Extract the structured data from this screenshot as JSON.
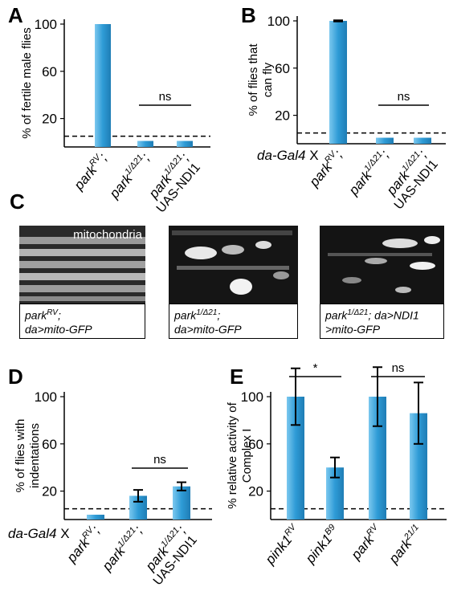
{
  "panel_labels": [
    "A",
    "B",
    "C",
    "D",
    "E"
  ],
  "prefix_label": "da-Gal4 X",
  "bar_color": "#2e9bd6",
  "chart_data": [
    {
      "id": "A",
      "type": "bar",
      "ylabel": "% of fertile male flies",
      "yticks": [
        20,
        60,
        100
      ],
      "ylim": [
        0,
        100
      ],
      "categories": [
        {
          "name": "park",
          "sup": "RV",
          "suffix": ";",
          "line2": ""
        },
        {
          "name": "park",
          "sup": "1/Δ21",
          "suffix": ";",
          "line2": ""
        },
        {
          "name": "park",
          "sup": "1/Δ21",
          "suffix": ";",
          "line2": "UAS-NDI1"
        }
      ],
      "values": [
        100,
        1,
        1
      ],
      "errors": [
        0,
        0,
        0
      ],
      "baseline": 5,
      "significance": [
        {
          "from": 1,
          "to": 2,
          "label": "ns"
        }
      ]
    },
    {
      "id": "B",
      "type": "bar",
      "ylabel": "% of flies that can fly",
      "yticks": [
        20,
        60,
        100
      ],
      "ylim": [
        0,
        100
      ],
      "categories": [
        {
          "name": "park",
          "sup": "RV",
          "suffix": ";",
          "line2": ""
        },
        {
          "name": "park",
          "sup": "1/Δ21",
          "suffix": ";",
          "line2": ""
        },
        {
          "name": "park",
          "sup": "1/Δ21",
          "suffix": ";",
          "line2": "UAS-NDI1"
        }
      ],
      "values": [
        100,
        1,
        1
      ],
      "errors": [
        0.5,
        0,
        0
      ],
      "baseline": 5,
      "significance": [
        {
          "from": 1,
          "to": 2,
          "label": "ns"
        }
      ]
    },
    {
      "id": "D",
      "type": "bar",
      "ylabel": "% of flies with indentations",
      "yticks": [
        20,
        60,
        100
      ],
      "ylim": [
        0,
        100
      ],
      "categories": [
        {
          "name": "park",
          "sup": "RV",
          "suffix": ";",
          "line2": ""
        },
        {
          "name": "park",
          "sup": "1/Δ21",
          "suffix": ";",
          "line2": ""
        },
        {
          "name": "park",
          "sup": "1/Δ21",
          "suffix": ";",
          "line2": "UAS-NDI1"
        }
      ],
      "values": [
        0,
        16,
        24
      ],
      "errors": [
        0,
        5,
        3.5
      ],
      "baseline": 5,
      "significance": [
        {
          "from": 1,
          "to": 2,
          "label": "ns"
        }
      ]
    },
    {
      "id": "E",
      "type": "bar",
      "ylabel": "% relative activity of Complex I",
      "yticks": [
        20,
        60,
        100
      ],
      "ylim": [
        0,
        100
      ],
      "categories": [
        {
          "name": "pink1",
          "sup": "RV",
          "suffix": "",
          "line2": ""
        },
        {
          "name": "pink1",
          "sup": "B9",
          "suffix": "",
          "line2": ""
        },
        {
          "name": "park",
          "sup": "RV",
          "suffix": "",
          "line2": ""
        },
        {
          "name": "park",
          "sup": "21/1",
          "suffix": "",
          "line2": ""
        }
      ],
      "values": [
        100,
        40,
        100,
        86
      ],
      "errors": [
        24,
        8.5,
        25,
        26
      ],
      "baseline": 5,
      "significance": [
        {
          "from": 0,
          "to": 1,
          "label": "*"
        },
        {
          "from": 2,
          "to": 3,
          "label": "ns"
        }
      ]
    }
  ],
  "micrographs": {
    "label": "mitochondria",
    "captions": [
      {
        "line1": "park",
        "sup1": "RV",
        "tail1": ";",
        "line2": "da>mito-GFP"
      },
      {
        "line1": "park",
        "sup1": "1/Δ21",
        "tail1": ";",
        "line2": "da>mito-GFP"
      },
      {
        "line1": "park",
        "sup1": "1/Δ21",
        "tail1": ";  da>NDI1",
        "line2": ">mito-GFP"
      }
    ]
  }
}
